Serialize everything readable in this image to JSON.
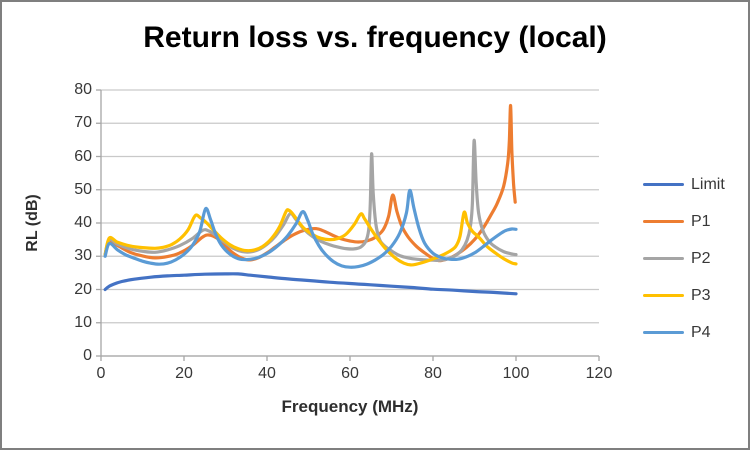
{
  "chart_data": {
    "type": "line",
    "title": "Return loss vs. frequency (local)",
    "xlabel": "Frequency (MHz)",
    "ylabel": "RL (dB)",
    "xlim": [
      0,
      120
    ],
    "ylim": [
      0,
      80
    ],
    "xticks": [
      0,
      20,
      40,
      60,
      80,
      100,
      120
    ],
    "yticks": [
      0,
      10,
      20,
      30,
      40,
      50,
      60,
      70,
      80
    ],
    "grid": "horizontal",
    "legend_position": "right",
    "axis_color": "#a6a6a6",
    "gridline_color": "#c9c9c9",
    "series": [
      {
        "name": "Limit",
        "color": "#4472C4",
        "points": [
          [
            1,
            20
          ],
          [
            2,
            21
          ],
          [
            3,
            21.6
          ],
          [
            5,
            22.4
          ],
          [
            8,
            23.1
          ],
          [
            12,
            23.7
          ],
          [
            16,
            24.1
          ],
          [
            20,
            24.3
          ],
          [
            25,
            24.6
          ],
          [
            30,
            24.7
          ],
          [
            33,
            24.7
          ],
          [
            36,
            24.3
          ],
          [
            40,
            23.8
          ],
          [
            45,
            23.2
          ],
          [
            50,
            22.7
          ],
          [
            55,
            22.2
          ],
          [
            60,
            21.8
          ],
          [
            65,
            21.4
          ],
          [
            70,
            21.0
          ],
          [
            75,
            20.6
          ],
          [
            80,
            20.1
          ],
          [
            85,
            19.8
          ],
          [
            90,
            19.4
          ],
          [
            95,
            19.1
          ],
          [
            100,
            18.7
          ]
        ]
      },
      {
        "name": "P1",
        "color": "#ED7D31",
        "points": [
          [
            1,
            30.5
          ],
          [
            2,
            34.5
          ],
          [
            4,
            33.2
          ],
          [
            7,
            31.2
          ],
          [
            10,
            30.1
          ],
          [
            13,
            29.5
          ],
          [
            16,
            29.9
          ],
          [
            19,
            31
          ],
          [
            22,
            33.2
          ],
          [
            24.5,
            35.8
          ],
          [
            26,
            36.4
          ],
          [
            28,
            35.4
          ],
          [
            30,
            33
          ],
          [
            32,
            30.8
          ],
          [
            34,
            29.4
          ],
          [
            36,
            28.9
          ],
          [
            38,
            29.6
          ],
          [
            40,
            31
          ],
          [
            42,
            32.8
          ],
          [
            44,
            34.6
          ],
          [
            46,
            36.2
          ],
          [
            48,
            37.4
          ],
          [
            50,
            38.1
          ],
          [
            52,
            38.3
          ],
          [
            54,
            37.4
          ],
          [
            56,
            36.2
          ],
          [
            58,
            35.2
          ],
          [
            60,
            34.6
          ],
          [
            62,
            34.3
          ],
          [
            64,
            34.6
          ],
          [
            66,
            35.6
          ],
          [
            68,
            38
          ],
          [
            69.3,
            42
          ],
          [
            70.3,
            48.4
          ],
          [
            71.3,
            43.5
          ],
          [
            72.5,
            39
          ],
          [
            74,
            35.8
          ],
          [
            76,
            33
          ],
          [
            78,
            31
          ],
          [
            80,
            29.3
          ],
          [
            81,
            28.8
          ],
          [
            82,
            28.7
          ],
          [
            84,
            29.4
          ],
          [
            86,
            30.8
          ],
          [
            88,
            32.6
          ],
          [
            90,
            35
          ],
          [
            92,
            38.3
          ],
          [
            94,
            42.5
          ],
          [
            95.5,
            46
          ],
          [
            97,
            51
          ],
          [
            98,
            58
          ],
          [
            98.4,
            65
          ],
          [
            98.7,
            75.3
          ],
          [
            99,
            62
          ],
          [
            99.4,
            52
          ],
          [
            99.8,
            46.3
          ]
        ]
      },
      {
        "name": "P2",
        "color": "#A5A5A5",
        "points": [
          [
            1,
            30.5
          ],
          [
            2,
            35
          ],
          [
            4,
            33.6
          ],
          [
            7,
            32.2
          ],
          [
            10,
            31.5
          ],
          [
            13,
            31.2
          ],
          [
            16,
            31.9
          ],
          [
            19,
            33.2
          ],
          [
            22,
            35.3
          ],
          [
            24.5,
            37.8
          ],
          [
            26,
            37.6
          ],
          [
            28,
            36
          ],
          [
            30,
            34
          ],
          [
            32,
            32.3
          ],
          [
            34,
            31.4
          ],
          [
            36,
            31.3
          ],
          [
            38,
            32
          ],
          [
            40,
            33.6
          ],
          [
            42,
            36
          ],
          [
            44,
            39.5
          ],
          [
            45.6,
            42.8
          ],
          [
            47,
            41
          ],
          [
            49,
            38
          ],
          [
            51,
            35.9
          ],
          [
            53,
            34.5
          ],
          [
            55,
            33.5
          ],
          [
            57,
            32.8
          ],
          [
            59,
            32.3
          ],
          [
            61,
            32.2
          ],
          [
            62.5,
            32.7
          ],
          [
            63.8,
            34.5
          ],
          [
            64.5,
            38
          ],
          [
            64.9,
            46
          ],
          [
            65.2,
            60.8
          ],
          [
            65.6,
            49
          ],
          [
            66.2,
            40
          ],
          [
            67,
            35.5
          ],
          [
            68,
            33.5
          ],
          [
            70,
            31.6
          ],
          [
            72,
            30.2
          ],
          [
            74,
            29.5
          ],
          [
            76,
            29.1
          ],
          [
            78,
            28.9
          ],
          [
            80,
            28.8
          ],
          [
            82,
            28.8
          ],
          [
            84,
            29.4
          ],
          [
            85.5,
            30.3
          ],
          [
            87,
            32
          ],
          [
            88.2,
            34.8
          ],
          [
            89,
            39
          ],
          [
            89.5,
            46
          ],
          [
            89.9,
            64.8
          ],
          [
            90.4,
            52
          ],
          [
            91,
            43
          ],
          [
            92,
            37.8
          ],
          [
            93.5,
            34.5
          ],
          [
            95,
            32.8
          ],
          [
            97,
            31.4
          ],
          [
            99,
            30.7
          ],
          [
            100,
            30.5
          ]
        ]
      },
      {
        "name": "P3",
        "color": "#FFC000",
        "points": [
          [
            1,
            30.5
          ],
          [
            2,
            35.5
          ],
          [
            4,
            34.2
          ],
          [
            7,
            33.1
          ],
          [
            10,
            32.6
          ],
          [
            13,
            32.4
          ],
          [
            15,
            32.7
          ],
          [
            17,
            33.5
          ],
          [
            19,
            35.2
          ],
          [
            21,
            38
          ],
          [
            22.7,
            42.2
          ],
          [
            24,
            41.5
          ],
          [
            25.5,
            40
          ],
          [
            27,
            38
          ],
          [
            29,
            35.5
          ],
          [
            31,
            33.5
          ],
          [
            33,
            32.3
          ],
          [
            35,
            31.7
          ],
          [
            37,
            31.9
          ],
          [
            39,
            33
          ],
          [
            41,
            35.2
          ],
          [
            43,
            38.8
          ],
          [
            44.6,
            43.5
          ],
          [
            45.3,
            43.8
          ],
          [
            46.3,
            42.6
          ],
          [
            47.5,
            40.5
          ],
          [
            49,
            38.3
          ],
          [
            51,
            36.5
          ],
          [
            53,
            35.4
          ],
          [
            55,
            35
          ],
          [
            57,
            35.3
          ],
          [
            59,
            36.6
          ],
          [
            61,
            39.5
          ],
          [
            62.6,
            42.7
          ],
          [
            63.5,
            41.3
          ],
          [
            65,
            38.3
          ],
          [
            67,
            34.7
          ],
          [
            69,
            31.7
          ],
          [
            71,
            29.4
          ],
          [
            73,
            27.9
          ],
          [
            74.6,
            27.4
          ],
          [
            76,
            27.6
          ],
          [
            78,
            28.3
          ],
          [
            80,
            29.2
          ],
          [
            82,
            30.2
          ],
          [
            84,
            31.5
          ],
          [
            85.5,
            33
          ],
          [
            86.5,
            36
          ],
          [
            87.5,
            43.2
          ],
          [
            88.3,
            40
          ],
          [
            89.5,
            37.5
          ],
          [
            91,
            35.8
          ],
          [
            93,
            33
          ],
          [
            95,
            31
          ],
          [
            97,
            29.3
          ],
          [
            99,
            28
          ],
          [
            100,
            27.7
          ]
        ]
      },
      {
        "name": "P4",
        "color": "#5B9BD5",
        "points": [
          [
            1,
            30
          ],
          [
            2,
            33.8
          ],
          [
            4,
            31.9
          ],
          [
            6,
            30.4
          ],
          [
            8,
            29.4
          ],
          [
            10,
            28.5
          ],
          [
            12,
            27.9
          ],
          [
            14,
            27.6
          ],
          [
            16,
            27.9
          ],
          [
            18,
            28.9
          ],
          [
            20,
            30.6
          ],
          [
            22,
            33.2
          ],
          [
            23.8,
            37.5
          ],
          [
            25.2,
            44.3
          ],
          [
            26.4,
            41
          ],
          [
            27.6,
            36.8
          ],
          [
            29,
            33.4
          ],
          [
            31,
            30.7
          ],
          [
            33,
            29.3
          ],
          [
            35,
            29
          ],
          [
            37,
            29.3
          ],
          [
            39,
            30.2
          ],
          [
            41,
            31.6
          ],
          [
            43,
            33.6
          ],
          [
            45,
            36.2
          ],
          [
            47,
            39.8
          ],
          [
            48.6,
            43.4
          ],
          [
            49.8,
            40.8
          ],
          [
            51,
            36.8
          ],
          [
            52.5,
            33.2
          ],
          [
            54,
            30.7
          ],
          [
            56,
            28.4
          ],
          [
            58,
            27.1
          ],
          [
            60,
            26.7
          ],
          [
            62,
            26.9
          ],
          [
            64,
            27.6
          ],
          [
            66,
            28.8
          ],
          [
            68,
            30.5
          ],
          [
            70,
            33
          ],
          [
            72,
            37
          ],
          [
            73.6,
            43
          ],
          [
            74.4,
            49.8
          ],
          [
            75.4,
            44.5
          ],
          [
            76.6,
            38.5
          ],
          [
            78,
            33.9
          ],
          [
            80,
            30.9
          ],
          [
            82,
            29.6
          ],
          [
            84,
            29.1
          ],
          [
            86,
            29.1
          ],
          [
            88,
            29.8
          ],
          [
            90,
            31
          ],
          [
            92,
            32.8
          ],
          [
            94,
            34.8
          ],
          [
            96,
            36.6
          ],
          [
            97.5,
            37.7
          ],
          [
            99,
            38.2
          ],
          [
            100,
            38.1
          ]
        ]
      }
    ]
  }
}
